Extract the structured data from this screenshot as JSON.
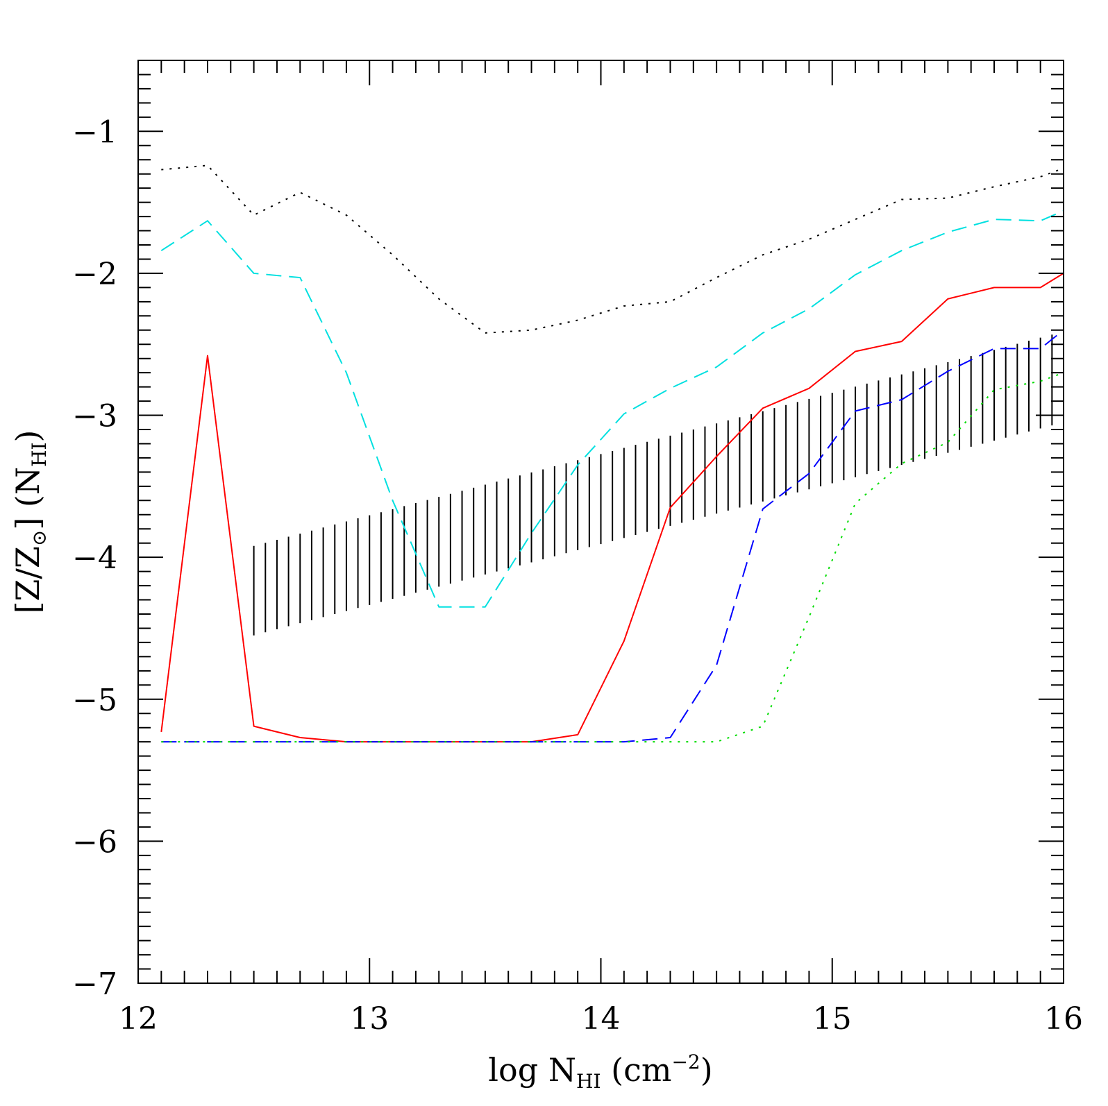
{
  "chart_data": {
    "type": "line",
    "title": "",
    "xlabel": {
      "main": "log N",
      "sub": "HI",
      "unit_open": " (cm",
      "sup": "−2",
      "unit_close": ")"
    },
    "ylabel": {
      "open": "[Z/Z",
      "sub_sun": "⊙",
      "close": "] (N",
      "sub": "HI",
      "tail": ")"
    },
    "xlim": [
      12,
      16
    ],
    "ylim": [
      -7,
      -0.5
    ],
    "x_ticks": [
      12,
      13,
      14,
      15,
      16
    ],
    "x_tick_labels": [
      "12",
      "13",
      "14",
      "15",
      "16"
    ],
    "y_ticks": [
      -1,
      -2,
      -3,
      -4,
      -5,
      -6,
      -7
    ],
    "y_tick_labels": [
      "−1",
      "−2",
      "−3",
      "−4",
      "−5",
      "−6",
      "−7"
    ],
    "series": [
      {
        "name": "black-dotted",
        "color": "#000000",
        "dash": "3,9",
        "x": [
          12.1,
          12.3,
          12.5,
          12.7,
          12.9,
          13.1,
          13.3,
          13.5,
          13.7,
          13.9,
          14.1,
          14.3,
          14.5,
          14.7,
          14.9,
          15.1,
          15.3,
          15.5,
          15.7,
          15.9,
          16.0
        ],
        "y": [
          -1.27,
          -1.24,
          -1.59,
          -1.43,
          -1.59,
          -1.87,
          -2.18,
          -2.42,
          -2.4,
          -2.33,
          -2.23,
          -2.2,
          -2.03,
          -1.87,
          -1.76,
          -1.62,
          -1.48,
          -1.47,
          -1.39,
          -1.32,
          -1.26
        ]
      },
      {
        "name": "cyan-dashed",
        "color": "#00e0e0",
        "dash": "22,11",
        "x": [
          12.1,
          12.3,
          12.5,
          12.7,
          12.9,
          13.1,
          13.3,
          13.5,
          13.7,
          13.9,
          14.1,
          14.3,
          14.5,
          14.7,
          14.9,
          15.1,
          15.3,
          15.5,
          15.7,
          15.9,
          16.0
        ],
        "y": [
          -1.84,
          -1.63,
          -2.0,
          -2.03,
          -2.7,
          -3.6,
          -4.35,
          -4.35,
          -3.83,
          -3.35,
          -2.99,
          -2.81,
          -2.66,
          -2.42,
          -2.25,
          -2.01,
          -1.84,
          -1.71,
          -1.62,
          -1.63,
          -1.56
        ]
      },
      {
        "name": "red-solid",
        "color": "#ff0000",
        "dash": "",
        "x": [
          12.1,
          12.3,
          12.5,
          12.7,
          12.9,
          13.1,
          13.3,
          13.5,
          13.7,
          13.9,
          14.1,
          14.3,
          14.5,
          14.7,
          14.9,
          15.1,
          15.3,
          15.5,
          15.7,
          15.9,
          16.0
        ],
        "y": [
          -5.23,
          -2.58,
          -5.19,
          -5.27,
          -5.3,
          -5.3,
          -5.3,
          -5.3,
          -5.3,
          -5.25,
          -4.59,
          -3.65,
          -3.29,
          -2.95,
          -2.81,
          -2.55,
          -2.48,
          -2.18,
          -2.1,
          -2.1,
          -2.0
        ]
      },
      {
        "name": "blue-dashed",
        "color": "#0000ff",
        "dash": "22,11",
        "x": [
          12.1,
          12.3,
          12.5,
          12.7,
          12.9,
          13.1,
          13.3,
          13.5,
          13.7,
          13.9,
          14.1,
          14.3,
          14.5,
          14.7,
          14.9,
          15.1,
          15.3,
          15.5,
          15.7,
          15.9,
          16.0
        ],
        "y": [
          -5.3,
          -5.3,
          -5.3,
          -5.3,
          -5.3,
          -5.3,
          -5.3,
          -5.3,
          -5.3,
          -5.3,
          -5.3,
          -5.27,
          -4.76,
          -3.66,
          -3.41,
          -2.97,
          -2.89,
          -2.69,
          -2.53,
          -2.53,
          -2.4
        ]
      },
      {
        "name": "green-dotted",
        "color": "#00dd00",
        "dash": "3,9",
        "x": [
          12.1,
          12.3,
          12.5,
          12.7,
          12.9,
          13.1,
          13.3,
          13.5,
          13.7,
          13.9,
          14.1,
          14.3,
          14.5,
          14.7,
          14.9,
          15.1,
          15.3,
          15.5,
          15.7,
          15.9,
          16.0
        ],
        "y": [
          -5.3,
          -5.3,
          -5.3,
          -5.3,
          -5.3,
          -5.3,
          -5.3,
          -5.3,
          -5.3,
          -5.3,
          -5.3,
          -5.3,
          -5.3,
          -5.19,
          -4.42,
          -3.62,
          -3.34,
          -3.19,
          -2.82,
          -2.76,
          -2.7
        ]
      }
    ],
    "band": {
      "name": "hatched-band",
      "color": "#000000",
      "x_start": 12.5,
      "x_end": 16.0,
      "lower_start": -4.55,
      "lower_end": -3.05,
      "upper_start": -3.92,
      "upper_end": -2.41,
      "step": 0.05
    },
    "grid": false,
    "legend": "none"
  }
}
